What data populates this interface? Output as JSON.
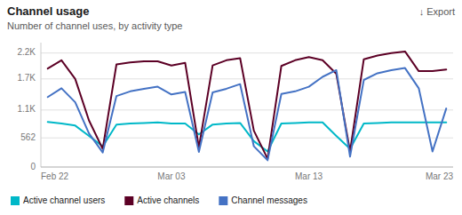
{
  "chart_data": {
    "type": "line",
    "title": "Channel usage",
    "subtitle": "Number of channel uses, by activity type",
    "annotations": [
      "↓ Export"
    ],
    "categories": [
      "Feb 22",
      null,
      null,
      null,
      null,
      null,
      null,
      null,
      null,
      "Mar 03",
      null,
      null,
      null,
      null,
      null,
      null,
      null,
      null,
      null,
      "Mar 13",
      null,
      null,
      null,
      null,
      null,
      null,
      null,
      null,
      null,
      "Mar 23"
    ],
    "series": [
      {
        "name": "Active channel users",
        "color": "#00B8C8",
        "values": [
          870,
          840,
          800,
          600,
          400,
          820,
          840,
          850,
          860,
          840,
          840,
          630,
          820,
          840,
          850,
          500,
          300,
          840,
          850,
          860,
          860,
          600,
          350,
          840,
          850,
          860,
          860,
          860,
          860,
          860
        ]
      },
      {
        "name": "Active channels",
        "color": "#5C0025",
        "values": [
          1900,
          2060,
          1700,
          900,
          350,
          1980,
          2020,
          2040,
          2040,
          1960,
          2010,
          380,
          1960,
          2060,
          2100,
          700,
          160,
          1950,
          2060,
          2120,
          2060,
          1800,
          300,
          2080,
          2150,
          2200,
          2230,
          1850,
          1850,
          1880
        ]
      },
      {
        "name": "Channel messages",
        "color": "#4472C4",
        "values": [
          1350,
          1520,
          1250,
          650,
          280,
          1370,
          1460,
          1510,
          1550,
          1400,
          1450,
          290,
          1440,
          1510,
          1600,
          400,
          130,
          1410,
          1460,
          1550,
          1740,
          1870,
          200,
          1680,
          1810,
          1870,
          1910,
          1520,
          300,
          1130
        ]
      }
    ],
    "ylim": [
      0,
      2400
    ],
    "yticks": [
      0,
      562,
      {
        "value": 1100,
        "label": "1.1K"
      },
      {
        "value": 1700,
        "label": "1.7K"
      },
      {
        "value": 2200,
        "label": "2.2K"
      }
    ],
    "grid": true,
    "legend": "bottom"
  }
}
